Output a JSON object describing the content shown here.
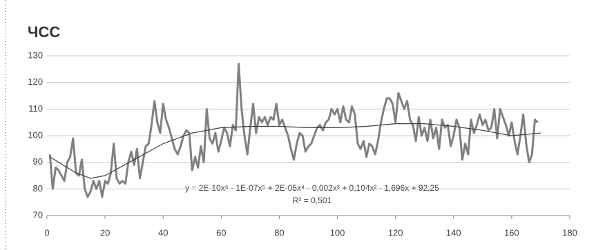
{
  "chart_data": {
    "type": "line",
    "title": "ЧСС",
    "annotations": [
      "y = 2E-10x⁶ - 1E-07x⁵ + 2E-05x⁴ - 0,002x³ + 0,104x² - 1,696x + 92,25",
      "R² = 0,501"
    ],
    "xlim": [
      0,
      180
    ],
    "xticks": [
      0,
      20,
      40,
      60,
      80,
      100,
      120,
      140,
      160,
      180
    ],
    "ylim": [
      70,
      130
    ],
    "yticks": [
      70,
      80,
      90,
      100,
      110,
      120,
      130
    ],
    "grid": true,
    "series": [
      {
        "color": "#808080",
        "x": [
          1,
          2,
          3,
          4,
          5,
          6,
          7,
          8,
          9,
          10,
          11,
          12,
          13,
          14,
          15,
          16,
          17,
          18,
          19,
          20,
          21,
          22,
          23,
          24,
          25,
          26,
          27,
          28,
          29,
          30,
          31,
          32,
          33,
          34,
          35,
          36,
          37,
          38,
          39,
          40,
          41,
          42,
          43,
          44,
          45,
          46,
          47,
          48,
          49,
          50,
          51,
          52,
          53,
          54,
          55,
          56,
          57,
          58,
          59,
          60,
          61,
          62,
          63,
          64,
          65,
          66,
          67,
          68,
          69,
          70,
          71,
          72,
          73,
          74,
          75,
          76,
          77,
          78,
          79,
          80,
          81,
          82,
          83,
          84,
          85,
          86,
          87,
          88,
          89,
          90,
          91,
          92,
          93,
          94,
          95,
          96,
          97,
          98,
          99,
          100,
          101,
          102,
          103,
          104,
          105,
          106,
          107,
          108,
          109,
          110,
          111,
          112,
          113,
          114,
          115,
          116,
          117,
          118,
          119,
          120,
          121,
          122,
          123,
          124,
          125,
          126,
          127,
          128,
          129,
          130,
          131,
          132,
          133,
          134,
          135,
          136,
          137,
          138,
          139,
          140,
          141,
          142,
          143,
          144,
          145,
          146,
          147,
          148,
          149,
          150,
          151,
          152,
          153,
          154,
          155,
          156,
          157,
          158,
          159,
          160,
          161,
          162,
          163,
          164,
          165,
          166,
          167,
          168,
          169
        ],
        "values": [
          93,
          80,
          88,
          87,
          85,
          83,
          90,
          92,
          99,
          86,
          85,
          91,
          80,
          77,
          79,
          83,
          80,
          83,
          77,
          83,
          82,
          86,
          97,
          84,
          82,
          83,
          82,
          90,
          94,
          89,
          95,
          84,
          90,
          96,
          97,
          104,
          113,
          105,
          101,
          112,
          106,
          103,
          99,
          95,
          93,
          96,
          100,
          102,
          101,
          87,
          92,
          88,
          96,
          90,
          110,
          99,
          97,
          101,
          94,
          98,
          103,
          101,
          96,
          104,
          102,
          127,
          110,
          100,
          93,
          103,
          112,
          101,
          107,
          105,
          107,
          104,
          107,
          106,
          112,
          104,
          106,
          103,
          100,
          95,
          91,
          97,
          101,
          100,
          94,
          96,
          97,
          100,
          103,
          104,
          102,
          105,
          106,
          110,
          108,
          110,
          105,
          111,
          106,
          105,
          111,
          108,
          97,
          95,
          98,
          92,
          97,
          96,
          93,
          98,
          105,
          110,
          114,
          114,
          112,
          105,
          116,
          113,
          110,
          113,
          106,
          104,
          98,
          107,
          100,
          103,
          98,
          106,
          99,
          103,
          95,
          106,
          103,
          104,
          96,
          100,
          106,
          103,
          91,
          97,
          93,
          106,
          101,
          104,
          108,
          104,
          106,
          102,
          103,
          110,
          99,
          110,
          107,
          104,
          100,
          105,
          98,
          93,
          100,
          108,
          97,
          90,
          93,
          106,
          105
        ]
      },
      {
        "color": "#404040",
        "x": [
          1,
          10,
          15,
          20,
          30,
          40,
          50,
          60,
          70,
          80,
          90,
          100,
          110,
          120,
          130,
          140,
          150,
          160,
          170
        ],
        "values": [
          92,
          86,
          84,
          85,
          91,
          97,
          101,
          103,
          103.5,
          103.5,
          103,
          103,
          103.5,
          104.5,
          104.5,
          103.5,
          102,
          100,
          101
        ]
      }
    ]
  }
}
